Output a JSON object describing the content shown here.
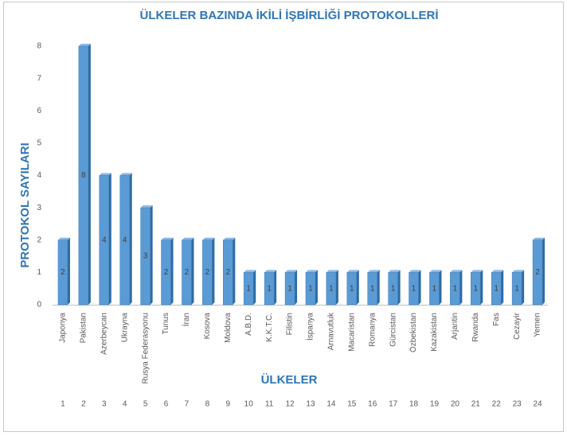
{
  "chart_data": {
    "type": "bar",
    "title": "ÜLKELER BAZINDA İKİLİ İŞBİRLİĞİ PROTOKOLLERİ",
    "y_label": "PROTOKOL SAYILARI",
    "x_label": "ÜLKELER",
    "categories": [
      "Japonya",
      "Pakistan",
      "Azerbeycan",
      "Ukrayna",
      "Rusya Federasyonu",
      "Tunus",
      "İran",
      "Kosova",
      "Moldova",
      "A.B.D.",
      "K.K.T.C.",
      "Filistin",
      "İspanya",
      "Arnavutluk",
      "Macaristan",
      "Romanya",
      "Gürcistan",
      "Özbekistan",
      "Kazakistan",
      "Arjantin",
      "Rwanda",
      "Fas",
      "Cezayir",
      "Yemen"
    ],
    "row_numbers": [
      1,
      2,
      3,
      4,
      5,
      6,
      7,
      8,
      9,
      10,
      11,
      12,
      13,
      14,
      15,
      16,
      17,
      18,
      19,
      20,
      21,
      22,
      23,
      24
    ],
    "values": [
      2,
      8,
      4,
      4,
      3,
      2,
      2,
      2,
      2,
      1,
      1,
      1,
      1,
      1,
      1,
      1,
      1,
      1,
      1,
      1,
      1,
      1,
      1,
      2
    ],
    "color": "#5b9bd5",
    "ylim": [
      0,
      8
    ],
    "yticks": [
      0,
      1,
      2,
      3,
      4,
      5,
      6,
      7,
      8
    ],
    "grid": false
  }
}
